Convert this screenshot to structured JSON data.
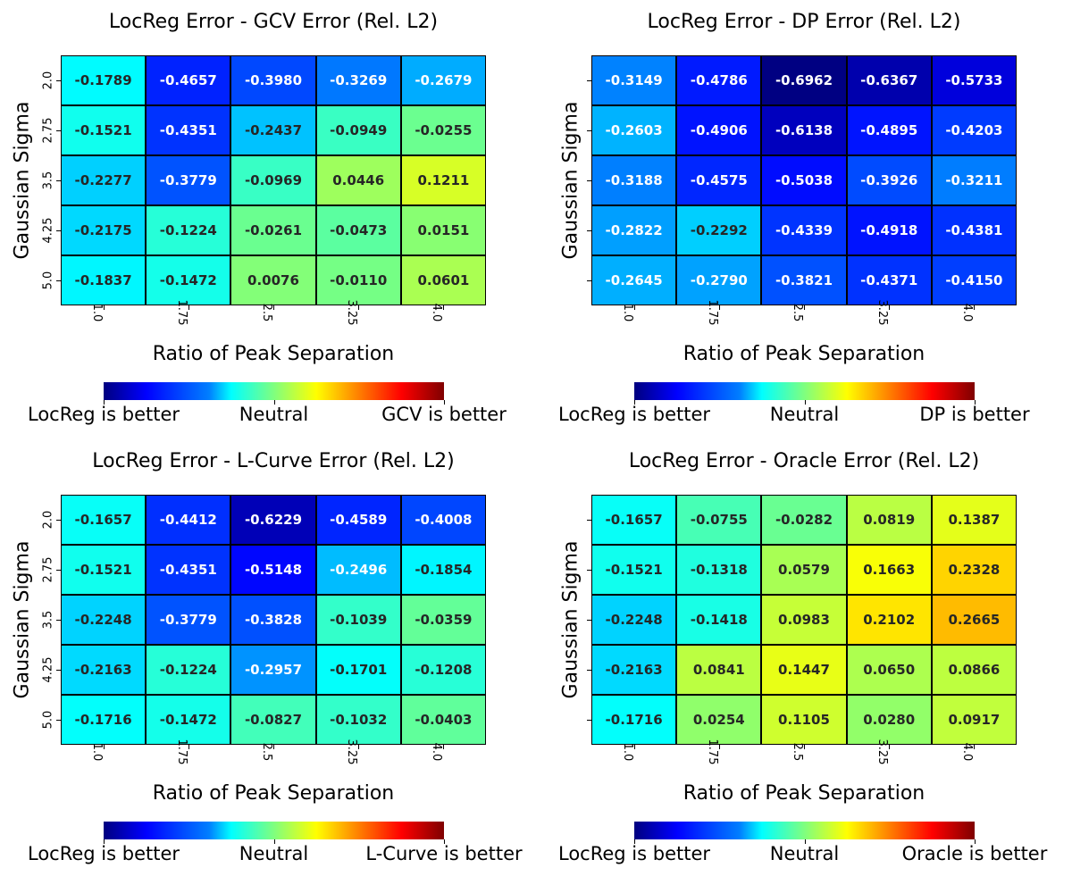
{
  "chart_data": [
    {
      "type": "heatmap",
      "title": "LocReg Error - GCV Error (Rel. L2)",
      "xlabel": "Ratio of Peak Separation",
      "ylabel": "Gaussian Sigma",
      "x": [
        "1.0",
        "1.75",
        "2.5",
        "3.25",
        "4.0"
      ],
      "y": [
        "2.0",
        "2.75",
        "3.5",
        "4.25",
        "5.0"
      ],
      "values": [
        [
          -0.1789,
          -0.4657,
          -0.398,
          -0.3269,
          -0.2679
        ],
        [
          -0.1521,
          -0.4351,
          -0.2437,
          -0.0949,
          -0.0255
        ],
        [
          -0.2277,
          -0.3779,
          -0.0969,
          0.0446,
          0.1211
        ],
        [
          -0.2175,
          -0.1224,
          -0.0261,
          -0.0473,
          0.0151
        ],
        [
          -0.1837,
          -0.1472,
          0.0076,
          -0.011,
          0.0601
        ]
      ],
      "labels": [
        [
          "-0.1789",
          "-0.4657",
          "-0.3980",
          "-0.3269",
          "-0.2679"
        ],
        [
          "-0.1521",
          "-0.4351",
          "-0.2437",
          "-0.0949",
          "-0.0255"
        ],
        [
          "-0.2277",
          "-0.3779",
          "-0.0969",
          "0.0446",
          "0.1211"
        ],
        [
          "-0.2175",
          "-0.1224",
          "-0.0261",
          "-0.0473",
          "0.0151"
        ],
        [
          "-0.1837",
          "-0.1472",
          "0.0076",
          "-0.0110",
          "0.0601"
        ]
      ],
      "colorbar": {
        "colormap": "jet",
        "labels": [
          "LocReg is better",
          "Neutral",
          "GCV is better"
        ]
      }
    },
    {
      "type": "heatmap",
      "title": "LocReg Error - DP Error (Rel. L2)",
      "xlabel": "Ratio of Peak Separation",
      "ylabel": "Gaussian Sigma",
      "x": [
        "1.0",
        "1.75",
        "2.5",
        "3.25",
        "4.0"
      ],
      "y": [
        "",
        "",
        "",
        "",
        ""
      ],
      "values": [
        [
          -0.3149,
          -0.4786,
          -0.6962,
          -0.6367,
          -0.5733
        ],
        [
          -0.2603,
          -0.4906,
          -0.6138,
          -0.4895,
          -0.4203
        ],
        [
          -0.3188,
          -0.4575,
          -0.5038,
          -0.3926,
          -0.3211
        ],
        [
          -0.2822,
          -0.2292,
          -0.4339,
          -0.4918,
          -0.4381
        ],
        [
          -0.2645,
          -0.279,
          -0.3821,
          -0.4371,
          -0.415
        ]
      ],
      "labels": [
        [
          "-0.3149",
          "-0.4786",
          "-0.6962",
          "-0.6367",
          "-0.5733"
        ],
        [
          "-0.2603",
          "-0.4906",
          "-0.6138",
          "-0.4895",
          "-0.4203"
        ],
        [
          "-0.3188",
          "-0.4575",
          "-0.5038",
          "-0.3926",
          "-0.3211"
        ],
        [
          "-0.2822",
          "-0.2292",
          "-0.4339",
          "-0.4918",
          "-0.4381"
        ],
        [
          "-0.2645",
          "-0.2790",
          "-0.3821",
          "-0.4371",
          "-0.4150"
        ]
      ],
      "colorbar": {
        "colormap": "jet",
        "labels": [
          "LocReg is better",
          "Neutral",
          "DP is better"
        ]
      }
    },
    {
      "type": "heatmap",
      "title": "LocReg Error - L-Curve Error (Rel. L2)",
      "xlabel": "Ratio of Peak Separation",
      "ylabel": "Gaussian Sigma",
      "x": [
        "1.0",
        "1.75",
        "2.5",
        "3.25",
        "4.0"
      ],
      "y": [
        "2.0",
        "2.75",
        "3.5",
        "4.25",
        "5.0"
      ],
      "values": [
        [
          -0.1657,
          -0.4412,
          -0.6229,
          -0.4589,
          -0.4008
        ],
        [
          -0.1521,
          -0.4351,
          -0.5148,
          -0.2496,
          -0.1854
        ],
        [
          -0.2248,
          -0.3779,
          -0.3828,
          -0.1039,
          -0.0359
        ],
        [
          -0.2163,
          -0.1224,
          -0.2957,
          -0.1701,
          -0.1208
        ],
        [
          -0.1716,
          -0.1472,
          -0.0827,
          -0.1032,
          -0.0403
        ]
      ],
      "labels": [
        [
          "-0.1657",
          "-0.4412",
          "-0.6229",
          "-0.4589",
          "-0.4008"
        ],
        [
          "-0.1521",
          "-0.4351",
          "-0.5148",
          "-0.2496",
          "-0.1854"
        ],
        [
          "-0.2248",
          "-0.3779",
          "-0.3828",
          "-0.1039",
          "-0.0359"
        ],
        [
          "-0.2163",
          "-0.1224",
          "-0.2957",
          "-0.1701",
          "-0.1208"
        ],
        [
          "-0.1716",
          "-0.1472",
          "-0.0827",
          "-0.1032",
          "-0.0403"
        ]
      ],
      "colorbar": {
        "colormap": "jet",
        "labels": [
          "LocReg is better",
          "Neutral",
          "L-Curve is better"
        ]
      }
    },
    {
      "type": "heatmap",
      "title": "LocReg Error - Oracle Error (Rel. L2)",
      "xlabel": "Ratio of Peak Separation",
      "ylabel": "Gaussian Sigma",
      "x": [
        "1.0",
        "1.75",
        "2.5",
        "3.25",
        "4.0"
      ],
      "y": [
        "",
        "",
        "",
        "",
        ""
      ],
      "values": [
        [
          -0.1657,
          -0.0755,
          -0.0282,
          0.0819,
          0.1387
        ],
        [
          -0.1521,
          -0.1318,
          0.0579,
          0.1663,
          0.2328
        ],
        [
          -0.2248,
          -0.1418,
          0.0983,
          0.2102,
          0.2665
        ],
        [
          -0.2163,
          0.0841,
          0.1447,
          0.065,
          0.0866
        ],
        [
          -0.1716,
          0.0254,
          0.1105,
          0.028,
          0.0917
        ]
      ],
      "labels": [
        [
          "-0.1657",
          "-0.0755",
          "-0.0282",
          "0.0819",
          "0.1387"
        ],
        [
          "-0.1521",
          "-0.1318",
          "0.0579",
          "0.1663",
          "0.2328"
        ],
        [
          "-0.2248",
          "-0.1418",
          "0.0983",
          "0.2102",
          "0.2665"
        ],
        [
          "-0.2163",
          "0.0841",
          "0.1447",
          "0.0650",
          "0.0866"
        ],
        [
          "-0.1716",
          "0.0254",
          "0.1105",
          "0.0280",
          "0.0917"
        ]
      ],
      "colorbar": {
        "colormap": "jet",
        "labels": [
          "LocReg is better",
          "Neutral",
          "Oracle is better"
        ]
      }
    }
  ]
}
